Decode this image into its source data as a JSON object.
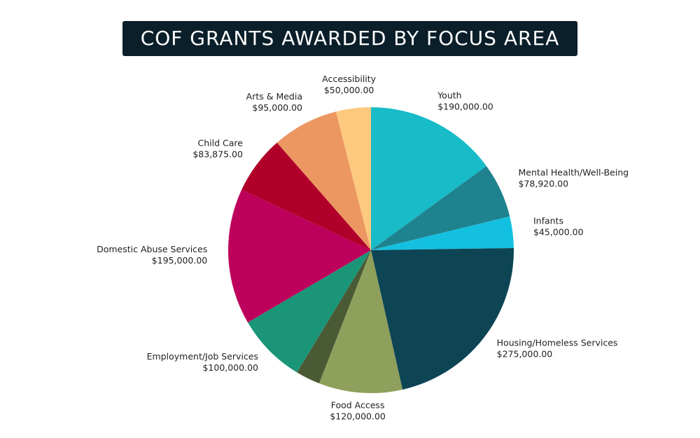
{
  "chart_data": {
    "type": "pie",
    "title": "COF GRANTS AWARDED BY FOCUS AREA",
    "categories": [
      "Youth",
      "Mental Health/Well-Being",
      "Infants",
      "Housing/Homeless Services",
      "Food Access",
      null,
      "Employment/Job Services",
      "Domestic Abuse Services",
      "Child Care",
      "Arts & Media",
      "Accessibility"
    ],
    "values": [
      190000,
      78920,
      45000,
      275000,
      120000,
      35000,
      100000,
      195000,
      83875,
      95000,
      50000
    ],
    "value_labels": [
      "$190,000.00",
      "$78,920.00",
      "$45,000.00",
      "$275,000.00",
      "$120,000.00",
      null,
      "$100,000.00",
      "$195,000.00",
      "$83,875.00",
      "$95,000.00",
      "$50,000.00"
    ],
    "colors": [
      "#18bcc8",
      "#1f838f",
      "#14c0e0",
      "#0d4555",
      "#8fa05c",
      "#4a5a35",
      "#1b9577",
      "#bd005b",
      "#b0002a",
      "#ec9762",
      "#fdc97f"
    ]
  }
}
